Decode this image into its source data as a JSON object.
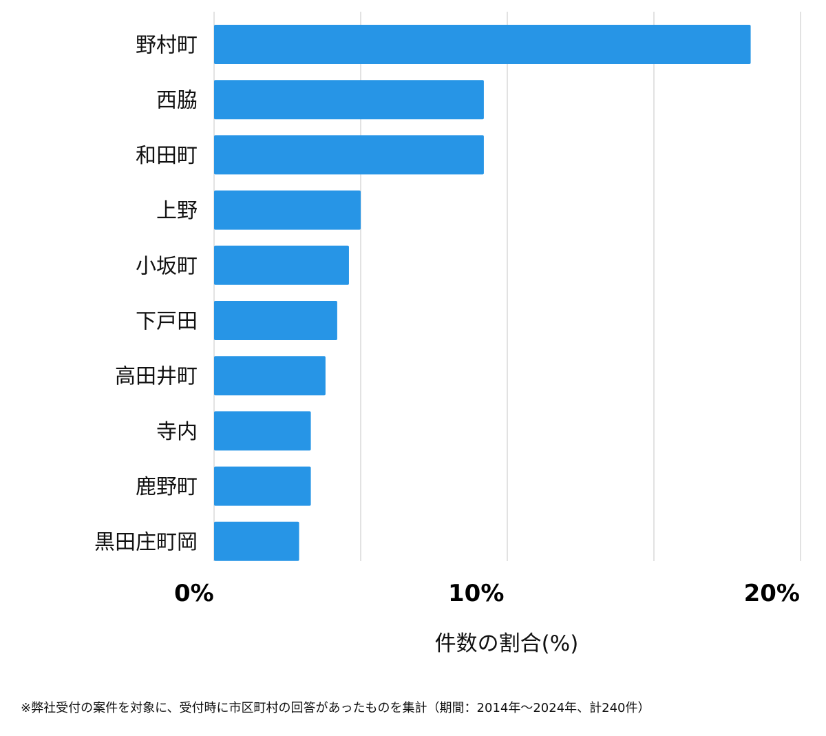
{
  "chart_data": {
    "type": "bar",
    "orientation": "horizontal",
    "categories": [
      "野村町",
      "西脇",
      "和田町",
      "上野",
      "小坂町",
      "下戸田",
      "高田井町",
      "寺内",
      "鹿野町",
      "黒田庄町岡"
    ],
    "values": [
      18.3,
      9.2,
      9.2,
      5.0,
      4.6,
      4.2,
      3.8,
      3.3,
      3.3,
      2.9
    ],
    "xlim": [
      0,
      20
    ],
    "xticks": [
      0,
      10,
      20
    ],
    "xtick_labels": [
      "0%",
      "10%",
      "20%"
    ],
    "xlabel": "件数の割合(%)",
    "ylabel": "",
    "title": "",
    "grid": "vertical",
    "bar_color": "#2795e6"
  },
  "footnote": "※弊社受付の案件を対象に、受付時に市区町村の回答があったものを集計（期間：2014年～2024年、計240件）"
}
